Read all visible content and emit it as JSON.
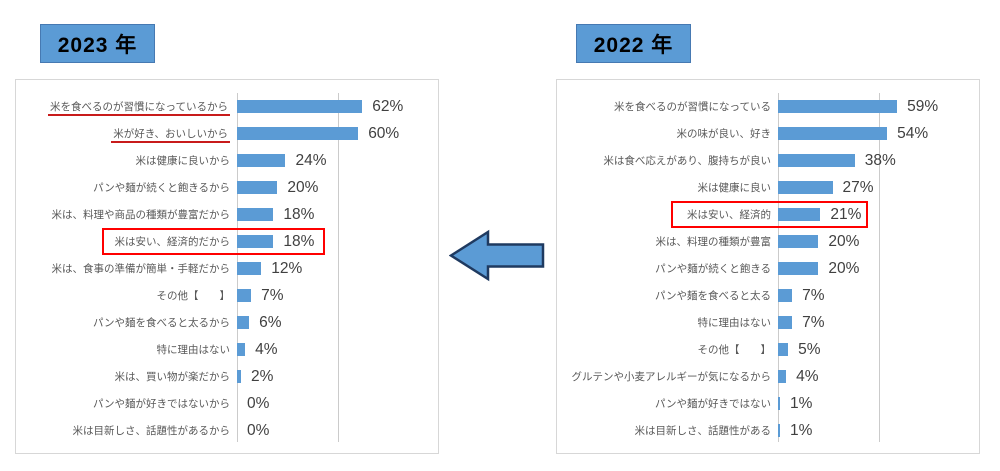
{
  "colors": {
    "bar_blue": "#5B9BD5",
    "title_box_blue": "#5B9BD5",
    "title_box_border": "#4679B2",
    "highlight_box_red": "#FF0000",
    "underline_red": "#C81B1B",
    "panel_border": "#D7D7D7",
    "gridline_gray": "#CBCBCB",
    "category_text": "#595959",
    "value_text": "#404040",
    "arrow_fill": "#5B9BD5",
    "arrow_border": "#1F3A60"
  },
  "arrow": {
    "shape": "block-arrow",
    "direction": "left",
    "fill": "#5B9BD5",
    "border": "#1F3A60"
  },
  "chart_data": [
    {
      "type": "bar",
      "orientation": "horizontal",
      "title": "2023 年",
      "unit": "%",
      "xlim": [
        0,
        100
      ],
      "gridlines_percent": [
        0,
        50,
        100
      ],
      "legend": "none",
      "categories": [
        "米を食べるのが習慣になっているから",
        "米が好き、おいしいから",
        "米は健康に良いから",
        "パンや麺が続くと飽きるから",
        "米は、料理や商品の種類が豊富だから",
        "米は安い、経済的だから",
        "米は、食事の準備が簡単・手軽だから",
        "その他【　　】",
        "パンや麺を食べると太るから",
        "特に理由はない",
        "米は、買い物が楽だから",
        "パンや麺が好きではないから",
        "米は目新しさ、話題性があるから"
      ],
      "values": [
        62,
        60,
        24,
        20,
        18,
        18,
        12,
        7,
        6,
        4,
        2,
        0,
        0
      ],
      "value_labels": [
        "62%",
        "60%",
        "24%",
        "20%",
        "18%",
        "18%",
        "12%",
        "7%",
        "6%",
        "4%",
        "2%",
        "0%",
        "0%"
      ],
      "underlined_category_indexes": [
        0,
        1
      ],
      "boxed_category_index": 5,
      "bar_color": "#5B9BD5"
    },
    {
      "type": "bar",
      "orientation": "horizontal",
      "title": "2022 年",
      "unit": "%",
      "xlim": [
        0,
        100
      ],
      "gridlines_percent": [
        0,
        50,
        100
      ],
      "legend": "none",
      "categories": [
        "米を食べるのが習慣になっている",
        "米の味が良い、好き",
        "米は食べ応えがあり、腹持ちが良い",
        "米は健康に良い",
        "米は安い、経済的",
        "米は、料理の種類が豊富",
        "パンや麺が続くと飽きる",
        "パンや麺を食べると太る",
        "特に理由はない",
        "その他【　　】",
        "グルテンや小麦アレルギーが気になるから",
        "パンや麺が好きではない",
        "米は目新しさ、話題性がある"
      ],
      "values": [
        59,
        54,
        38,
        27,
        21,
        20,
        20,
        7,
        7,
        5,
        4,
        1,
        1
      ],
      "value_labels": [
        "59%",
        "54%",
        "38%",
        "27%",
        "21%",
        "20%",
        "20%",
        "7%",
        "7%",
        "5%",
        "4%",
        "1%",
        "1%"
      ],
      "underlined_category_indexes": [],
      "boxed_category_index": 4,
      "bar_color": "#5B9BD5"
    }
  ]
}
